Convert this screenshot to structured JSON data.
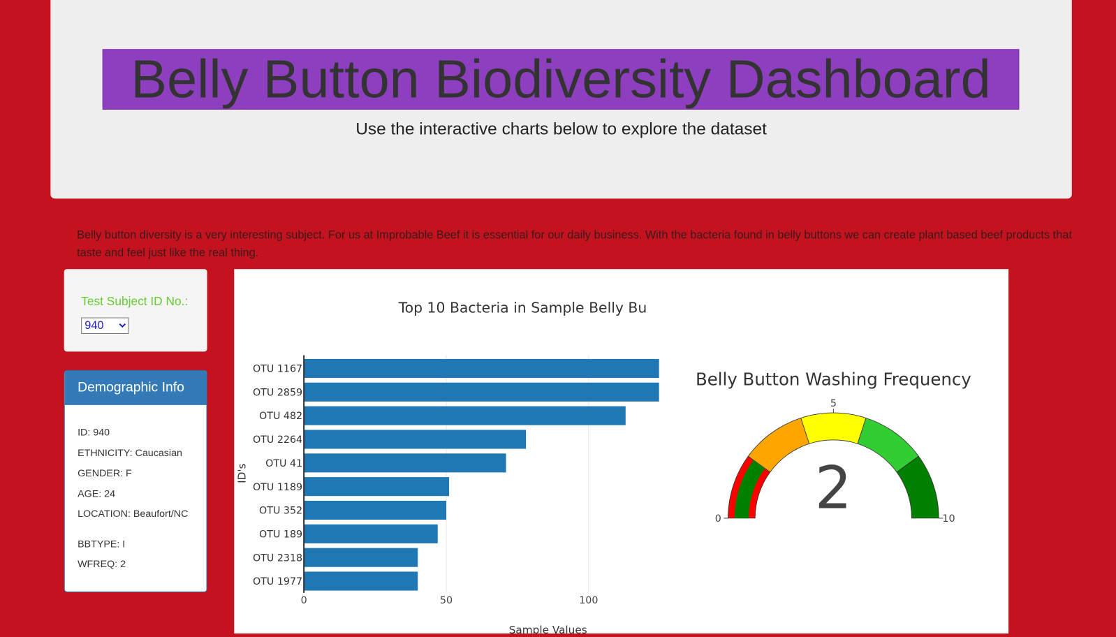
{
  "header": {
    "title": "Belly Button Biodiversity Dashboard",
    "subtitle": "Use the interactive charts below to explore the dataset"
  },
  "intro": "Belly button diversity is a very interesting subject. For us at Improbable Beef it is essential for our daily business. With the bacteria found in belly buttons we can create plant based beef products that taste and feel just like the real thing.",
  "selector": {
    "label": "Test Subject ID No.:",
    "value": "940"
  },
  "demographic": {
    "title": "Demographic Info",
    "items": [
      "ID: 940",
      "ETHNICITY: Caucasian",
      "GENDER: F",
      "AGE: 24",
      "LOCATION: Beaufort/NC",
      "BBTYPE: I",
      "WFREQ: 2"
    ]
  },
  "chart_data": [
    {
      "type": "hbar",
      "title": "Top 10 Bacteria in Sample Belly Bu",
      "x_label": "Sample Values",
      "y_label": "ID's",
      "categories": [
        "OTU 1167",
        "OTU 2859",
        "OTU 482",
        "OTU 2264",
        "OTU 41",
        "OTU 1189",
        "OTU 352",
        "OTU 189",
        "OTU 2318",
        "OTU 1977"
      ],
      "values": [
        130,
        128,
        113,
        78,
        71,
        51,
        50,
        47,
        40,
        40
      ],
      "color": "#1f77b4",
      "xlim": [
        0,
        124.75
      ],
      "xticks": [
        0,
        50,
        100
      ],
      "grid": true
    },
    {
      "type": "gauge",
      "title": "Belly Button Washing Frequency",
      "value": 2,
      "range": [
        0,
        10
      ],
      "ticks": [
        0,
        5,
        10
      ],
      "bar_color": "green",
      "steps": [
        {
          "range": [
            0,
            2
          ],
          "color": "red"
        },
        {
          "range": [
            2,
            4
          ],
          "color": "orange"
        },
        {
          "range": [
            4,
            6
          ],
          "color": "yellow"
        },
        {
          "range": [
            6,
            8
          ],
          "color": "limegreen"
        },
        {
          "range": [
            8,
            10
          ],
          "color": "green"
        }
      ]
    }
  ]
}
